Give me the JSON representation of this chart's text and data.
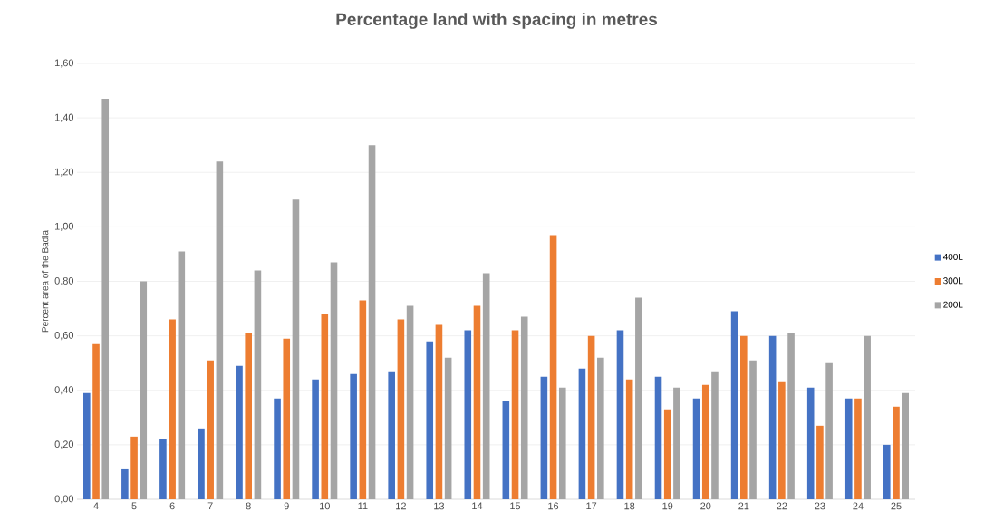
{
  "chart_data": {
    "type": "bar",
    "title": "Percentage land with spacing in metres",
    "ylabel": "Percent area of the Badia",
    "categories": [
      "4",
      "5",
      "6",
      "7",
      "8",
      "9",
      "10",
      "11",
      "12",
      "13",
      "14",
      "15",
      "16",
      "17",
      "18",
      "19",
      "20",
      "21",
      "22",
      "23",
      "24",
      "25"
    ],
    "series": [
      {
        "name": "400L",
        "color": "#4472c4",
        "values": [
          0.39,
          0.11,
          0.22,
          0.26,
          0.49,
          0.37,
          0.44,
          0.46,
          0.47,
          0.58,
          0.62,
          0.36,
          0.45,
          0.48,
          0.62,
          0.45,
          0.37,
          0.69,
          0.6,
          0.41,
          0.37,
          0.2
        ]
      },
      {
        "name": "300L",
        "color": "#ed7d31",
        "values": [
          0.57,
          0.23,
          0.66,
          0.51,
          0.61,
          0.59,
          0.68,
          0.73,
          0.66,
          0.64,
          0.71,
          0.62,
          0.97,
          0.6,
          0.44,
          0.33,
          0.42,
          0.6,
          0.43,
          0.27,
          0.37,
          0.34
        ]
      },
      {
        "name": "200L",
        "color": "#a5a5a5",
        "values": [
          1.47,
          0.8,
          0.91,
          1.24,
          0.84,
          1.1,
          0.87,
          1.3,
          0.71,
          0.52,
          0.83,
          0.67,
          0.41,
          0.52,
          0.74,
          0.41,
          0.47,
          0.51,
          0.61,
          0.5,
          0.6,
          0.39
        ]
      }
    ],
    "ylim": [
      0,
      1.6
    ],
    "yticks": [
      {
        "value": 0,
        "label": "0,00"
      },
      {
        "value": 0.2,
        "label": "0,20"
      },
      {
        "value": 0.4,
        "label": "0,40"
      },
      {
        "value": 0.6,
        "label": "0,60"
      },
      {
        "value": 0.8,
        "label": "0,80"
      },
      {
        "value": 1.0,
        "label": "1,00"
      },
      {
        "value": 1.2,
        "label": "1,20"
      },
      {
        "value": 1.4,
        "label": "1,40"
      },
      {
        "value": 1.6,
        "label": "1,60"
      }
    ],
    "grid": "y",
    "legend": "right"
  }
}
